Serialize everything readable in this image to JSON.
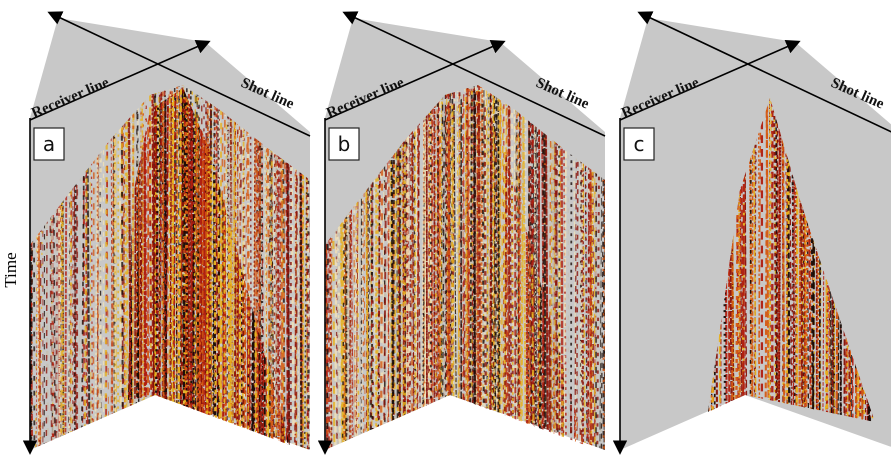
{
  "axis_label": "Time",
  "panels": [
    {
      "label": "a",
      "receiver_label": "Receiver line",
      "shot_label": "Shot line"
    },
    {
      "label": "b",
      "receiver_label": "Receiver line",
      "shot_label": "Shot line"
    },
    {
      "label": "c",
      "receiver_label": "Receiver line",
      "shot_label": "Shot line"
    }
  ]
}
